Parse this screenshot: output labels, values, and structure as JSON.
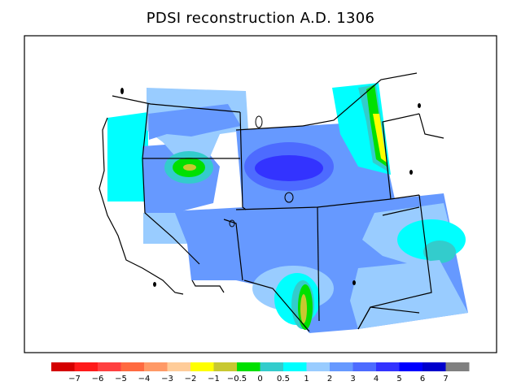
{
  "title": "PDSI reconstruction A.D. 1306",
  "colorbar": {
    "colors": [
      "#d40000",
      "#ff1a1a",
      "#ff4040",
      "#ff6a40",
      "#ff9966",
      "#ffcc99",
      "#ffff00",
      "#c8c830",
      "#00e000",
      "#33cccc",
      "#00ffff",
      "#99ccff",
      "#6699ff",
      "#4d6bff",
      "#3333ff",
      "#0000ff",
      "#0000cc",
      "#808080"
    ],
    "labels": [
      "−7",
      "−6",
      "−5",
      "−4",
      "−3",
      "−2",
      "−1",
      "−0.5",
      "0",
      "0.5",
      "1",
      "2",
      "3",
      "4",
      "5",
      "6",
      "7"
    ]
  },
  "legend_key": {
    "cyan": "#00ffff",
    "light_blue": "#99ccff",
    "mid_blue": "#6699ff",
    "blue": "#4d6bff",
    "deep_blue": "#3333ff",
    "teal": "#33cccc",
    "green": "#00e000",
    "olive": "#c8c830",
    "yellow": "#ffff00"
  }
}
